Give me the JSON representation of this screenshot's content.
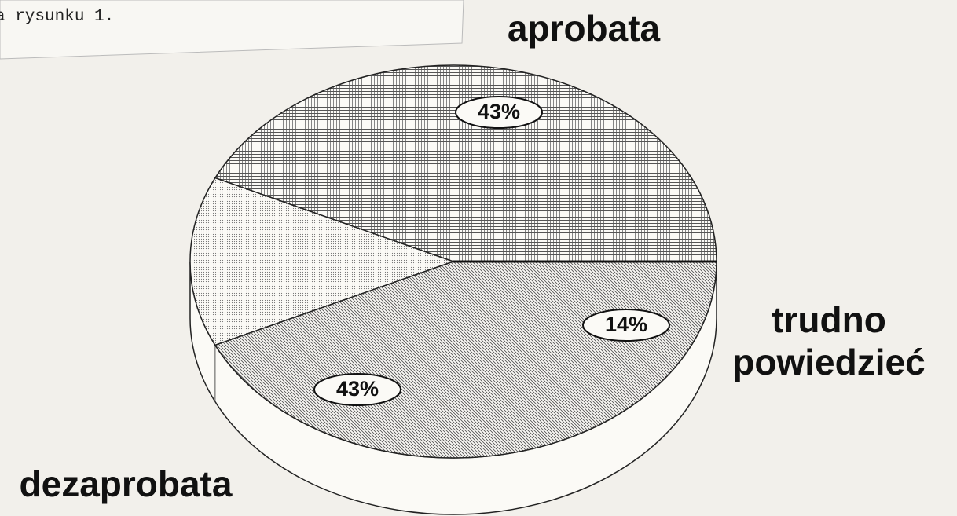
{
  "caption": "a rysunku 1.",
  "chart_data": {
    "type": "pie",
    "categories": [
      "aprobata",
      "trudno powiedzieć",
      "dezaprobata"
    ],
    "values": [
      43,
      14,
      43
    ],
    "value_labels": [
      "43%",
      "14%",
      "43%"
    ],
    "colors": [
      "#555555",
      "#777777",
      "#555555"
    ]
  }
}
